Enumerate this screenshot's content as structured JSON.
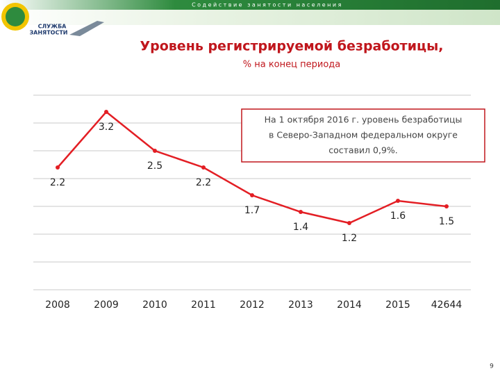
{
  "header": {
    "banner": "Содействие занятости населения",
    "logo_line1": "СЛУЖБА",
    "logo_line2": "ЗАНЯТОСТИ"
  },
  "chart_data": {
    "type": "line",
    "title": "Уровень регистрируемой безработицы,",
    "subtitle": "% на конец периода",
    "categories": [
      "2008",
      "2009",
      "2010",
      "2011",
      "2012",
      "2013",
      "2014",
      "2015",
      "42644"
    ],
    "values": [
      2.2,
      3.2,
      2.5,
      2.2,
      1.7,
      1.4,
      1.2,
      1.6,
      1.5
    ],
    "color": "#e31e24",
    "ylim": [
      0,
      3.5
    ],
    "yticks": [
      0,
      0.5,
      1,
      1.5,
      2,
      2.5,
      3,
      3.5
    ],
    "ytick_labels": false,
    "grid": true,
    "annotation": [
      "На 1 октября 2016 г. уровень безработицы",
      "в Северо-Западном федеральном округе",
      "составил 0,9%."
    ]
  },
  "page_number": "9"
}
